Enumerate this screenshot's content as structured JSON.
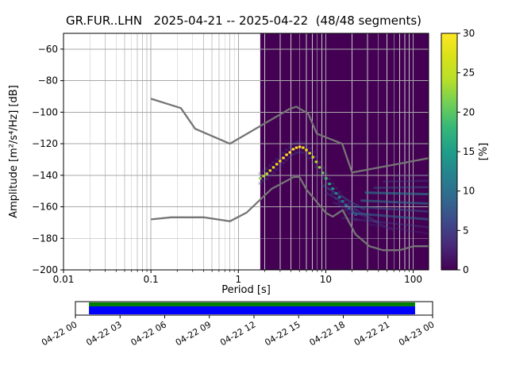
{
  "title": "GR.FUR..LHN   2025-04-21 -- 2025-04-22  (48/48 segments)",
  "chart_data": {
    "type": "heatmap",
    "title": "GR.FUR..LHN   2025-04-21 -- 2025-04-22  (48/48 segments)",
    "xlabel": "Period [s]",
    "ylabel": "Amplitude [m²/s⁴/Hz] [dB]",
    "xscale": "log",
    "xlim": [
      0.01,
      150
    ],
    "ylim": [
      -200,
      -50
    ],
    "xticks": [
      0.01,
      0.1,
      1,
      10,
      100
    ],
    "xtick_labels": [
      "0.01",
      "0.1",
      "1",
      "10",
      "100"
    ],
    "yticks": [
      -60,
      -80,
      -100,
      -120,
      -140,
      -160,
      -180,
      -200
    ],
    "ytick_labels": [
      "−60",
      "−80",
      "−100",
      "−120",
      "−140",
      "−160",
      "−180",
      "−200"
    ],
    "grid": "both",
    "colors": {
      "grid": "#a8a8a8",
      "grid_minor": "#c6c6c6",
      "noise_models": "#757575",
      "spine": "#000000",
      "histogram_background": "#440154"
    },
    "colorbar": {
      "label": "[%]",
      "min": 0,
      "max": 30,
      "ticks": [
        0,
        5,
        10,
        15,
        20,
        25,
        30
      ],
      "tick_labels": [
        "0",
        "5",
        "10",
        "15",
        "20",
        "25",
        "30"
      ],
      "colormap": "viridis",
      "stops": [
        [
          0.0,
          "#440154"
        ],
        [
          0.1,
          "#482878"
        ],
        [
          0.2,
          "#3e4989"
        ],
        [
          0.3,
          "#31688e"
        ],
        [
          0.4,
          "#26828e"
        ],
        [
          0.5,
          "#1f9e89"
        ],
        [
          0.6,
          "#35b779"
        ],
        [
          0.7,
          "#6ece58"
        ],
        [
          0.8,
          "#b5de2b"
        ],
        [
          0.9,
          "#d8e219"
        ],
        [
          1.0,
          "#fde725"
        ]
      ]
    },
    "histogram": {
      "period_range": [
        1.78,
        150
      ],
      "background_percent": 0,
      "mode": {
        "periods": [
          1.78,
          1.94,
          2.12,
          2.31,
          2.52,
          2.75,
          3.0,
          3.27,
          3.56,
          3.89,
          4.24,
          4.62,
          5.04,
          5.5,
          6.0,
          6.54,
          7.13,
          7.78,
          8.49,
          9.25,
          10.09,
          11.01,
          12.01,
          13.1,
          14.29,
          15.58,
          17.0,
          18.54,
          20.22,
          22.06
        ],
        "db": [
          -142,
          -140.5,
          -139,
          -137,
          -135,
          -133,
          -131,
          -129,
          -127,
          -125.5,
          -123.5,
          -122.5,
          -122,
          -122.5,
          -124,
          -126,
          -128.5,
          -131.5,
          -135,
          -138.5,
          -142,
          -145.5,
          -148.5,
          -151.5,
          -154,
          -156.5,
          -159,
          -161,
          -163,
          -165
        ],
        "percent": [
          22,
          24,
          25,
          26,
          27,
          28,
          29,
          30,
          30,
          30,
          30,
          30,
          30,
          29,
          28,
          27,
          26,
          25,
          23,
          21,
          19,
          17,
          15,
          13,
          12,
          11,
          10,
          9,
          8,
          7
        ]
      },
      "bands": [
        {
          "p1": 9,
          "db1": -146,
          "p2": 28,
          "db2": -162,
          "pct": 8,
          "op": 0.45,
          "w": 2.5
        },
        {
          "p1": 10,
          "db1": -151,
          "p2": 40,
          "db2": -170,
          "pct": 7,
          "op": 0.4,
          "w": 2.5
        },
        {
          "p1": 12,
          "db1": -157,
          "p2": 60,
          "db2": -175,
          "pct": 5,
          "op": 0.35,
          "w": 2.5
        },
        {
          "p1": 20,
          "db1": -164,
          "p2": 150,
          "db2": -168,
          "pct": 9,
          "op": 0.6,
          "w": 3
        },
        {
          "p1": 22,
          "db1": -160,
          "p2": 150,
          "db2": -163,
          "pct": 8,
          "op": 0.55,
          "w": 2.5
        },
        {
          "p1": 25,
          "db1": -156,
          "p2": 150,
          "db2": -158,
          "pct": 10,
          "op": 0.6,
          "w": 3
        },
        {
          "p1": 28,
          "db1": -151,
          "p2": 150,
          "db2": -152,
          "pct": 11,
          "op": 0.65,
          "w": 3
        },
        {
          "p1": 35,
          "db1": -148,
          "p2": 150,
          "db2": -147.5,
          "pct": 8,
          "op": 0.5,
          "w": 2.5
        },
        {
          "p1": 45,
          "db1": -144,
          "p2": 150,
          "db2": -143.5,
          "pct": 6,
          "op": 0.4,
          "w": 2.5
        },
        {
          "p1": 60,
          "db1": -140.5,
          "p2": 150,
          "db2": -140,
          "pct": 5,
          "op": 0.3,
          "w": 2
        },
        {
          "p1": 15,
          "db1": -167,
          "p2": 150,
          "db2": -173,
          "pct": 6,
          "op": 0.4,
          "w": 2.5
        },
        {
          "p1": 30,
          "db1": -171,
          "p2": 150,
          "db2": -177,
          "pct": 4,
          "op": 0.3,
          "w": 2.5
        }
      ]
    },
    "noise_models": {
      "color": "#757575",
      "nlnm": [
        [
          0.1,
          -168
        ],
        [
          0.17,
          -166.7
        ],
        [
          0.4,
          -166.7
        ],
        [
          0.8,
          -169.2
        ],
        [
          1.24,
          -163.7
        ],
        [
          2.4,
          -148.6
        ],
        [
          4.3,
          -141.1
        ],
        [
          5.0,
          -141.1
        ],
        [
          6.0,
          -149.0
        ],
        [
          10,
          -163.8
        ],
        [
          12,
          -166.2
        ],
        [
          15.6,
          -162.1
        ],
        [
          21.9,
          -177.5
        ],
        [
          31.6,
          -185.0
        ],
        [
          45,
          -187.5
        ],
        [
          70,
          -187.5
        ],
        [
          101,
          -185.0
        ],
        [
          150,
          -185.0
        ]
      ],
      "nhnm": [
        [
          0.1,
          -91.5
        ],
        [
          0.22,
          -97.4
        ],
        [
          0.32,
          -110.5
        ],
        [
          0.8,
          -120.0
        ],
        [
          3.8,
          -98.1
        ],
        [
          4.6,
          -96.5
        ],
        [
          6.3,
          -101.0
        ],
        [
          7.9,
          -113.6
        ],
        [
          15.4,
          -120.0
        ],
        [
          20,
          -138.3
        ],
        [
          150,
          -129.2
        ]
      ]
    }
  },
  "timeline": {
    "tick_labels": [
      "04-22 00",
      "04-22 03",
      "04-22 06",
      "04-22 09",
      "04-22 12",
      "04-22 15",
      "04-22 18",
      "04-22 21",
      "04-23 00"
    ],
    "bar": {
      "border": "#000000",
      "fill": "#ffffff",
      "green": "#008000",
      "blue": "#0000ff",
      "coverage_start_frac": 0.038,
      "coverage_end_frac": 0.951,
      "green_height_frac": 0.33
    }
  }
}
